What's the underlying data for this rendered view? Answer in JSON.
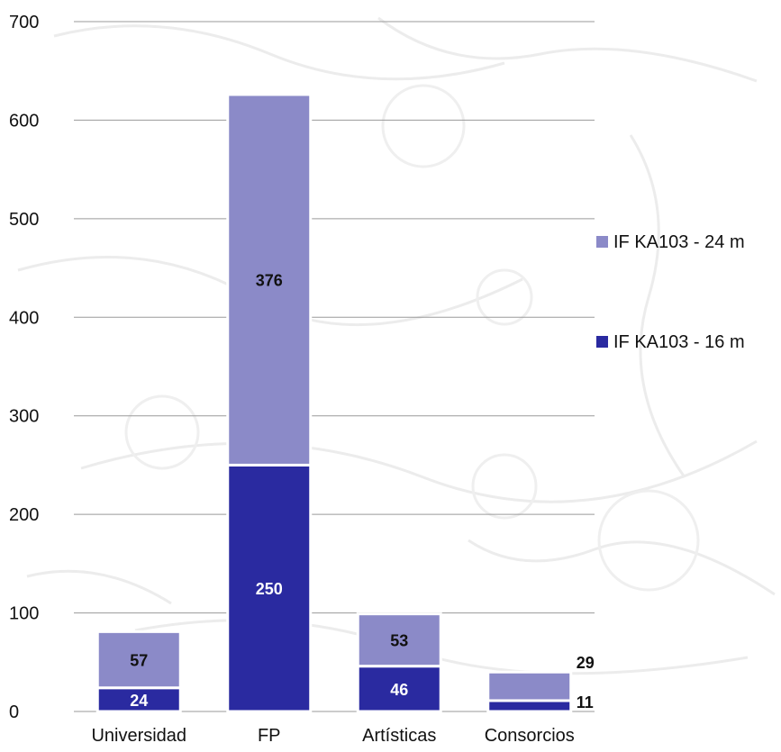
{
  "chart_data": {
    "type": "bar",
    "stacked": true,
    "title": "",
    "xlabel": "",
    "ylabel": "",
    "categories": [
      "Universidad",
      "FP",
      "Artísticas",
      "Consorcios"
    ],
    "series": [
      {
        "name": "IF KA103 - 16 m",
        "values": [
          24,
          250,
          46,
          11
        ],
        "color": "#2a2aa0"
      },
      {
        "name": "IF KA103 - 24 m",
        "values": [
          57,
          376,
          53,
          29
        ],
        "color": "#8b8ac8"
      }
    ],
    "ylim": [
      0,
      700
    ],
    "yticks": [
      "0",
      "100",
      "200",
      "300",
      "400",
      "500",
      "600",
      "700"
    ],
    "grid": true,
    "legend_position": "right",
    "data_labels": true
  }
}
